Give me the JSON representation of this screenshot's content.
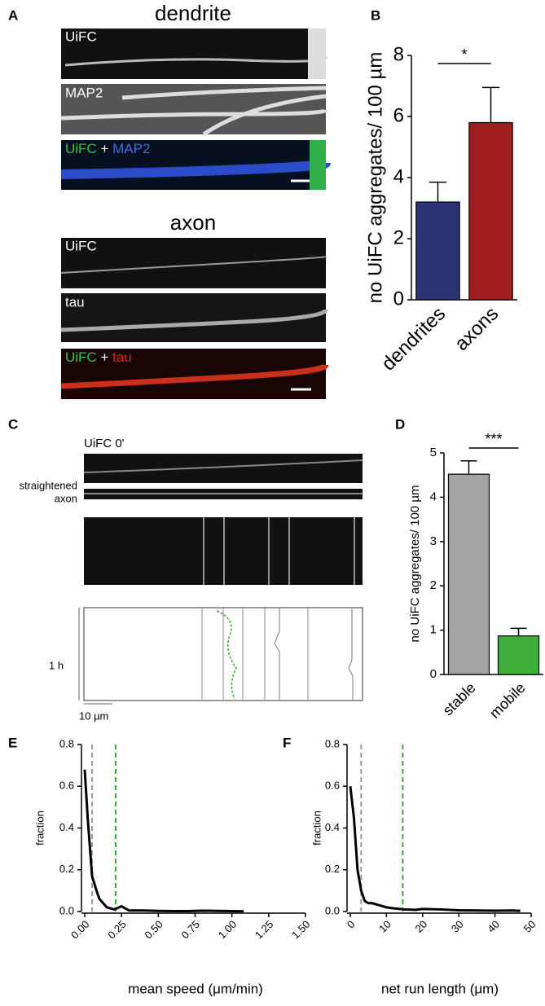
{
  "labels": {
    "A": "A",
    "B": "B",
    "C": "C",
    "D": "D",
    "E": "E",
    "F": "F",
    "dendrite": "dendrite",
    "dend_uifc": "UiFC",
    "dend_map2": "MAP2",
    "dend_merge": [
      "UiFC",
      "+",
      "MAP2"
    ],
    "axon": "axon",
    "axon_uifc": "UiFC",
    "axon_tau": "tau",
    "axon_merge": [
      "UiFC",
      "+",
      "tau"
    ],
    "c_uifc": "UiFC 0'",
    "straightened": [
      "straightened",
      "axon"
    ],
    "time_scale": "1 h",
    "length_scale": "10 µm"
  },
  "chart_data": [
    {
      "type": "bar",
      "ylabel": "no UiFC aggregates/ 100 µm",
      "categories": [
        "dendrites",
        "axons"
      ],
      "values": [
        3.2,
        5.8
      ],
      "errors": [
        0.65,
        1.15
      ],
      "colors": [
        "#2b3373",
        "#a11e1e"
      ],
      "ylim": [
        0,
        8
      ],
      "yticks": [
        0,
        2,
        4,
        6,
        8
      ],
      "annotation": "*"
    },
    {
      "type": "bar",
      "ylabel": "no UiFC aggregates/ 100 µm",
      "categories": [
        "stable",
        "mobile"
      ],
      "values": [
        4.52,
        0.87
      ],
      "errors": [
        0.3,
        0.17
      ],
      "colors": [
        "#a3a3a3",
        "#3fae3a"
      ],
      "ylim": [
        0,
        5
      ],
      "yticks": [
        0,
        1,
        2,
        3,
        4,
        5
      ],
      "annotation": "***"
    },
    {
      "type": "line",
      "xlabel": "mean speed (μm/min)",
      "ylabel": "fraction",
      "x": [
        0,
        0.02,
        0.05,
        0.08,
        0.1,
        0.15,
        0.2,
        0.25,
        0.3,
        0.4,
        0.5,
        0.6,
        0.7,
        0.8,
        0.9,
        1.0,
        1.08
      ],
      "series": [
        {
          "color": "#000000",
          "values": [
            0.68,
            0.45,
            0.17,
            0.1,
            0.06,
            0.02,
            0.01,
            0.025,
            0.005,
            0.005,
            0.003,
            0.002,
            0.002,
            0.004,
            0.003,
            0.002,
            0.001
          ]
        }
      ],
      "vlines": [
        {
          "x": 0.05,
          "color": "#999999"
        },
        {
          "x": 0.21,
          "color": "#3aaa35"
        }
      ],
      "xlim": [
        0,
        1.5
      ],
      "xticks": [
        {
          "value": 0,
          "label": "0.00"
        },
        {
          "value": 0.25,
          "label": "0.25"
        },
        {
          "value": 0.5,
          "label": "0.50"
        },
        {
          "value": 0.75,
          "label": "0.75"
        },
        {
          "value": 1,
          "label": "1.00"
        },
        {
          "value": 1.25,
          "label": "1.25"
        },
        {
          "value": 1.5,
          "label": "1.50"
        }
      ],
      "ylim": [
        0,
        0.8
      ],
      "yticks": [
        {
          "value": 0,
          "label": "0.0"
        },
        0.2,
        0.4,
        0.6,
        0.8
      ]
    },
    {
      "type": "line",
      "xlabel": "net run length (μm)",
      "ylabel": "fraction",
      "x": [
        0,
        1,
        2,
        3,
        4,
        5,
        6,
        8,
        10,
        12,
        15,
        18,
        20,
        25,
        30,
        35,
        40,
        45,
        47
      ],
      "series": [
        {
          "color": "#000000",
          "values": [
            0.6,
            0.45,
            0.2,
            0.1,
            0.05,
            0.04,
            0.04,
            0.03,
            0.02,
            0.015,
            0.01,
            0.008,
            0.012,
            0.01,
            0.006,
            0.005,
            0.004,
            0.005,
            0.003
          ]
        }
      ],
      "vlines": [
        {
          "x": 3,
          "color": "#999999"
        },
        {
          "x": 14.5,
          "color": "#3aaa35"
        }
      ],
      "xlim": [
        0,
        50
      ],
      "xticks": [
        0,
        10,
        20,
        30,
        40,
        50
      ],
      "ylim": [
        0,
        0.8
      ],
      "yticks": [
        {
          "value": 0,
          "label": "0.0"
        },
        0.2,
        0.4,
        0.6,
        0.8
      ]
    }
  ]
}
